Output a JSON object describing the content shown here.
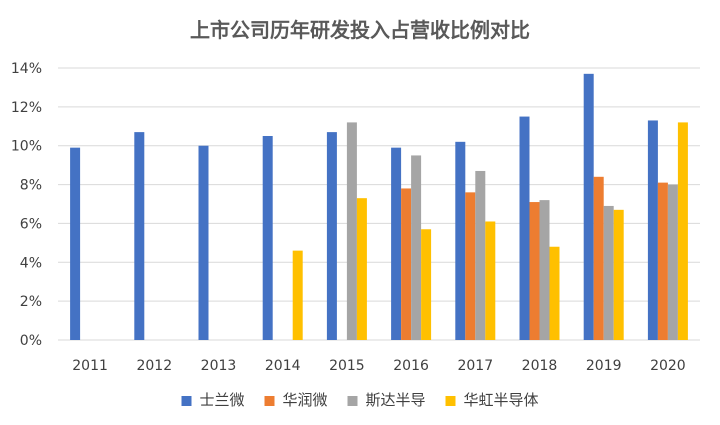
{
  "chart_data": {
    "type": "bar",
    "title": "上市公司历年研发投入占营收比例对比",
    "xlabel": "",
    "ylabel": "",
    "categories": [
      "2011",
      "2012",
      "2013",
      "2014",
      "2015",
      "2016",
      "2017",
      "2018",
      "2019",
      "2020"
    ],
    "y_ticks": [
      "0%",
      "2%",
      "4%",
      "6%",
      "8%",
      "10%",
      "12%",
      "14%"
    ],
    "ylim": [
      0,
      14
    ],
    "grid": true,
    "legend_position": "bottom",
    "series": [
      {
        "name": "士兰微",
        "color": "#4472C4",
        "values": [
          9.9,
          10.7,
          10.0,
          10.5,
          10.7,
          9.9,
          10.2,
          11.5,
          13.7,
          11.3
        ]
      },
      {
        "name": "华润微",
        "color": "#ED7D31",
        "values": [
          null,
          null,
          null,
          null,
          null,
          7.8,
          7.6,
          7.1,
          8.4,
          8.1
        ]
      },
      {
        "name": "斯达半导",
        "color": "#A5A5A5",
        "values": [
          null,
          null,
          null,
          null,
          11.2,
          9.5,
          8.7,
          7.2,
          6.9,
          8.0
        ]
      },
      {
        "name": "华虹半导体",
        "color": "#FFC000",
        "values": [
          null,
          null,
          null,
          4.6,
          7.3,
          5.7,
          6.1,
          4.8,
          6.7,
          11.2
        ]
      }
    ]
  }
}
